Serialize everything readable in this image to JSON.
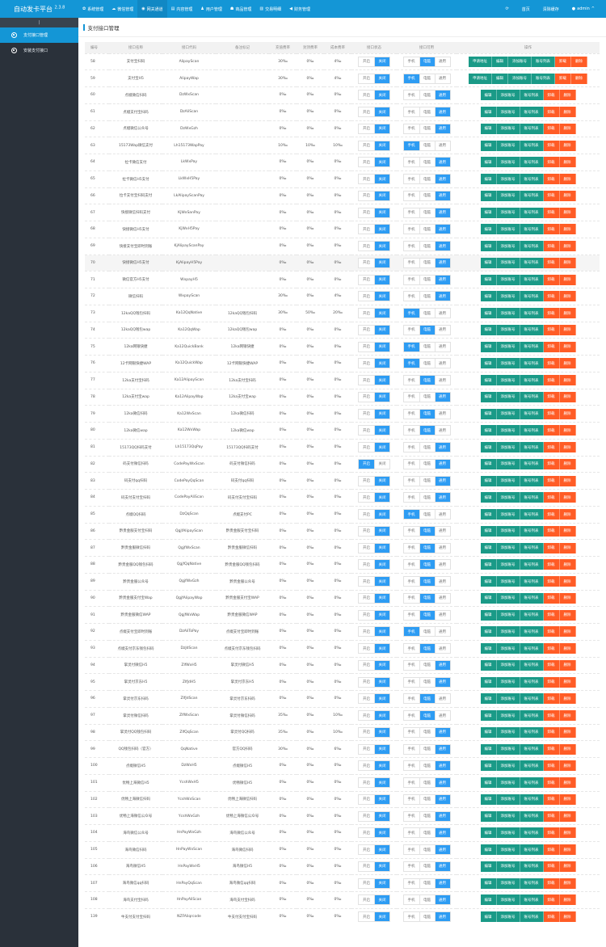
{
  "header": {
    "brand": "自动发卡平台",
    "version": "2.3.8",
    "nav": [
      {
        "label": "系统管理",
        "icon": "gear-icon",
        "glyph": "✿"
      },
      {
        "label": "微信管理",
        "icon": "wechat-icon",
        "glyph": "☁"
      },
      {
        "label": "网关通道",
        "icon": "gateway-icon",
        "glyph": "◉"
      },
      {
        "label": "内容管理",
        "icon": "document-icon",
        "glyph": "▤"
      },
      {
        "label": "用户管理",
        "icon": "users-icon",
        "glyph": "♟"
      },
      {
        "label": "商品管理",
        "icon": "bag-icon",
        "glyph": "☗"
      },
      {
        "label": "交易明细",
        "icon": "chart-icon",
        "glyph": "▥"
      },
      {
        "label": "财务管理",
        "icon": "megaphone-icon",
        "glyph": "◀"
      }
    ],
    "active_nav": 2,
    "refresh_glyph": "⟳",
    "home": "首页",
    "clear_cache": "清除缓存",
    "user": "admin",
    "user_glyph": "👤",
    "caret": "^"
  },
  "sidebar": {
    "toggle": "|",
    "items": [
      {
        "label": "支付接口管理",
        "active": true
      },
      {
        "label": "安装支付接口",
        "active": false
      }
    ]
  },
  "page": {
    "title": "支付接口管理"
  },
  "table": {
    "columns": [
      "编号",
      "接口名称",
      "接口代码",
      "备注标记",
      "充值费率",
      "封顶费率",
      "成本费率",
      "接口状态",
      "接口可用",
      "操作"
    ],
    "status_options": [
      "开启",
      "关闭"
    ],
    "usage_options": [
      "手机",
      "电脑",
      "通用"
    ],
    "ops_full": [
      "申请地址",
      "编辑",
      "添加账号",
      "账号列表",
      "卸载",
      "删除"
    ],
    "ops_short": [
      "编辑",
      "添加账号",
      "账号列表",
      "卸载",
      "删除"
    ],
    "rows": [
      {
        "id": "58",
        "name": "支付宝扫码",
        "code": "AlipayScan",
        "remark": "",
        "rate": "30‰",
        "cap": "0‰",
        "cost": "4‰",
        "status": 1,
        "usage": 1,
        "apply": true
      },
      {
        "id": "59",
        "name": "支付宝H5",
        "code": "AlipayWap",
        "remark": "",
        "rate": "30‰",
        "cap": "0‰",
        "cost": "4‰",
        "status": 1,
        "usage": 0,
        "apply": true
      },
      {
        "id": "60",
        "name": "点缀微信扫码",
        "code": "DzWxScan",
        "remark": "",
        "rate": "0‰",
        "cap": "0‰",
        "cost": "0‰",
        "status": 1,
        "usage": 2
      },
      {
        "id": "61",
        "name": "点缀支付宝扫码",
        "code": "DzAliScan",
        "remark": "",
        "rate": "0‰",
        "cap": "0‰",
        "cost": "0‰",
        "status": 1,
        "usage": 2
      },
      {
        "id": "62",
        "name": "点缀微信公众号",
        "code": "DzWxGzh",
        "remark": "",
        "rate": "0‰",
        "cap": "0‰",
        "cost": "0‰",
        "status": 1,
        "usage": 2
      },
      {
        "id": "63",
        "name": "15173Wap微信支付",
        "code": "Lh15173WapPay",
        "remark": "",
        "rate": "10‰",
        "cap": "10‰",
        "cost": "10‰",
        "status": 1,
        "usage": 0
      },
      {
        "id": "64",
        "name": "拉卡微信支付",
        "code": "LkWxPay",
        "remark": "",
        "rate": "0‰",
        "cap": "0‰",
        "cost": "0‰",
        "status": 1,
        "usage": 2
      },
      {
        "id": "65",
        "name": "拉卡微信H5支付",
        "code": "LkWxH5Pay",
        "remark": "",
        "rate": "0‰",
        "cap": "0‰",
        "cost": "0‰",
        "status": 1,
        "usage": 2
      },
      {
        "id": "66",
        "name": "拉卡支付宝扫码支付",
        "code": "LkAlipayScanPay",
        "remark": "",
        "rate": "0‰",
        "cap": "0‰",
        "cost": "0‰",
        "status": 1,
        "usage": 2
      },
      {
        "id": "67",
        "name": "快接微信扫码支付",
        "code": "KjWxSanPay",
        "remark": "",
        "rate": "0‰",
        "cap": "0‰",
        "cost": "0‰",
        "status": 1,
        "usage": 2
      },
      {
        "id": "68",
        "name": "快接微信H5支付",
        "code": "KjWxH5Pay",
        "remark": "",
        "rate": "0‰",
        "cap": "0‰",
        "cost": "0‰",
        "status": 1,
        "usage": 2
      },
      {
        "id": "69",
        "name": "快接支付宝即时到账",
        "code": "KjAlipayScanPay",
        "remark": "",
        "rate": "0‰",
        "cap": "0‰",
        "cost": "0‰",
        "status": 1,
        "usage": 2
      },
      {
        "id": "70",
        "name": "快接微信H5支付",
        "code": "KjAlipayH5Pay",
        "remark": "",
        "rate": "0‰",
        "cap": "0‰",
        "cost": "0‰",
        "status": 1,
        "usage": 2,
        "highlight": true
      },
      {
        "id": "71",
        "name": "微信官方H5支付",
        "code": "WxpayH5",
        "remark": "",
        "rate": "0‰",
        "cap": "0‰",
        "cost": "0‰",
        "status": 1,
        "usage": 2
      },
      {
        "id": "72",
        "name": "微信扫码",
        "code": "WxpayScan",
        "remark": "",
        "rate": "30‰",
        "cap": "0‰",
        "cost": "4‰",
        "status": 1,
        "usage": 2
      },
      {
        "id": "73",
        "name": "12kaQQ钱包扫码",
        "code": "Ka12QqNative",
        "remark": "12kaQQ钱包扫码",
        "rate": "30‰",
        "cap": "50‰",
        "cost": "20‰",
        "status": 1,
        "usage": 0
      },
      {
        "id": "74",
        "name": "12kaQQ钱包wap",
        "code": "Ka12QqWap",
        "remark": "12kaQQ钱包wap",
        "rate": "0‰",
        "cap": "0‰",
        "cost": "0‰",
        "status": 1,
        "usage": 1
      },
      {
        "id": "75",
        "name": "12ka网银快捷",
        "code": "Ka12QuickBank",
        "remark": "12ka网银快捷",
        "rate": "0‰",
        "cap": "0‰",
        "cost": "0‰",
        "status": 1,
        "usage": 0
      },
      {
        "id": "76",
        "name": "12卡网银快捷WAP",
        "code": "Ka12QuickWap",
        "remark": "12卡网银快捷WAP",
        "rate": "0‰",
        "cap": "0‰",
        "cost": "0‰",
        "status": 1,
        "usage": 0
      },
      {
        "id": "77",
        "name": "12ka支付宝扫码",
        "code": "Ka12AlipayScan",
        "remark": "12ka支付宝扫码",
        "rate": "0‰",
        "cap": "0‰",
        "cost": "0‰",
        "status": 1,
        "usage": 1
      },
      {
        "id": "78",
        "name": "12ka支付宝wap",
        "code": "Ka12AlipayWap",
        "remark": "12ka支付宝wap",
        "rate": "0‰",
        "cap": "0‰",
        "cost": "0‰",
        "status": 1,
        "usage": 2
      },
      {
        "id": "79",
        "name": "12ka微信扫码",
        "code": "Ka12WxScan",
        "remark": "12ka微信扫码",
        "rate": "0‰",
        "cap": "0‰",
        "cost": "0‰",
        "status": 1,
        "usage": 1
      },
      {
        "id": "80",
        "name": "12ka微信wap",
        "code": "Ka12WxWap",
        "remark": "12ka微信wap",
        "rate": "0‰",
        "cap": "0‰",
        "cost": "0‰",
        "status": 1,
        "usage": 1
      },
      {
        "id": "81",
        "name": "15173QQ扫码支付",
        "code": "Lh15173QqPay",
        "remark": "15173QQ扫码支付",
        "rate": "0‰",
        "cap": "0‰",
        "cost": "0‰",
        "status": 1,
        "usage": 2
      },
      {
        "id": "82",
        "name": "码支付微信扫码",
        "code": "CodePayWxScan",
        "remark": "码支付微信扫码",
        "rate": "0‰",
        "cap": "0‰",
        "cost": "0‰",
        "status": 0,
        "usage": 2
      },
      {
        "id": "83",
        "name": "码支付qq扫码",
        "code": "CodePayQqScan",
        "remark": "码支付qq扫码",
        "rate": "0‰",
        "cap": "0‰",
        "cost": "0‰",
        "status": 1,
        "usage": 2
      },
      {
        "id": "84",
        "name": "码支付支付宝扫码",
        "code": "CodePayAliScan",
        "remark": "码支付支付宝扫码",
        "rate": "0‰",
        "cap": "0‰",
        "cost": "0‰",
        "status": 1,
        "usage": 2
      },
      {
        "id": "85",
        "name": "点缀QQ扫码",
        "code": "DzQqScan",
        "remark": "点缀支付PC",
        "rate": "0‰",
        "cap": "0‰",
        "cost": "0‰",
        "status": 1,
        "usage": 0
      },
      {
        "id": "86",
        "name": "黔贵金服支付宝扫码",
        "code": "QgjfAlipayScan",
        "remark": "黔贵金服支付宝扫码",
        "rate": "0‰",
        "cap": "0‰",
        "cost": "0‰",
        "status": 1,
        "usage": 1
      },
      {
        "id": "87",
        "name": "黔贵金服微信扫码",
        "code": "QgjfWxScan",
        "remark": "黔贵金服微信扫码",
        "rate": "0‰",
        "cap": "0‰",
        "cost": "0‰",
        "status": 1,
        "usage": 1
      },
      {
        "id": "88",
        "name": "黔贵金服QQ钱包扫码",
        "code": "QgjfQqNative",
        "remark": "黔贵金服QQ钱包扫码",
        "rate": "0‰",
        "cap": "0‰",
        "cost": "0‰",
        "status": 1,
        "usage": 1
      },
      {
        "id": "89",
        "name": "黔贵金服公众号",
        "code": "QgjfWxGzh",
        "remark": "黔贵金服公众号",
        "rate": "0‰",
        "cap": "0‰",
        "cost": "0‰",
        "status": 1,
        "usage": 1
      },
      {
        "id": "90",
        "name": "黔贵金服支付宝Wap",
        "code": "QgjfAlipayWap",
        "remark": "黔贵金服支付宝WAP",
        "rate": "0‰",
        "cap": "0‰",
        "cost": "0‰",
        "status": 1,
        "usage": 1
      },
      {
        "id": "91",
        "name": "黔贵金服微信WAP",
        "code": "QgjfWxWap",
        "remark": "黔贵金服微信WAP",
        "rate": "0‰",
        "cap": "0‰",
        "cost": "0‰",
        "status": 1,
        "usage": 1
      },
      {
        "id": "92",
        "name": "点缀支付宝即时到账",
        "code": "DzAliToPay",
        "remark": "点缀支付宝即时到账",
        "rate": "0‰",
        "cap": "0‰",
        "cost": "0‰",
        "status": 1,
        "usage": 0
      },
      {
        "id": "93",
        "name": "点缀支付京东钱包扫码",
        "code": "DzJdScan",
        "remark": "点缀支付京东钱包扫码",
        "rate": "0‰",
        "cap": "0‰",
        "cost": "0‰",
        "status": 1,
        "usage": 1
      },
      {
        "id": "94",
        "name": "掌灵付微信H5",
        "code": "ZlfWxH5",
        "remark": "掌灵付微信H5",
        "rate": "0‰",
        "cap": "0‰",
        "cost": "0‰",
        "status": 1,
        "usage": 2
      },
      {
        "id": "95",
        "name": "掌灵付京东H5",
        "code": "ZlfJdH5",
        "remark": "掌灵付京东H5",
        "rate": "0‰",
        "cap": "0‰",
        "cost": "0‰",
        "status": 1,
        "usage": 2
      },
      {
        "id": "96",
        "name": "掌灵付京东扫码",
        "code": "ZlfJdScan",
        "remark": "掌灵付京东扫码",
        "rate": "0‰",
        "cap": "0‰",
        "cost": "0‰",
        "status": 1,
        "usage": 1
      },
      {
        "id": "97",
        "name": "掌灵付微信扫码",
        "code": "ZlfWxScan",
        "remark": "掌灵付微信扫码",
        "rate": "35‰",
        "cap": "0‰",
        "cost": "10‰",
        "status": 1,
        "usage": 1
      },
      {
        "id": "98",
        "name": "掌灵付QQ钱包扫码",
        "code": "ZlfQqScan",
        "remark": "掌灵付QQ扫码",
        "rate": "35‰",
        "cap": "0‰",
        "cost": "10‰",
        "status": 1,
        "usage": 2
      },
      {
        "id": "99",
        "name": "QQ钱包扫码（官方）",
        "code": "QqNative",
        "remark": "官方QQ扫码",
        "rate": "30‰",
        "cap": "0‰",
        "cost": "6‰",
        "status": 1,
        "usage": 2
      },
      {
        "id": "100",
        "name": "点缀微信H5",
        "code": "DzWxH5",
        "remark": "点缀微信H5",
        "rate": "0‰",
        "cap": "0‰",
        "cost": "0‰",
        "status": 1,
        "usage": 2
      },
      {
        "id": "101",
        "name": "优畅上海微信H5",
        "code": "YcshWxH5",
        "remark": "优畅微信H5",
        "rate": "0‰",
        "cap": "0‰",
        "cost": "0‰",
        "status": 1,
        "usage": 2
      },
      {
        "id": "102",
        "name": "优畅上海微信扫码",
        "code": "YcshWxScan",
        "remark": "优畅上海微信扫码",
        "rate": "0‰",
        "cap": "0‰",
        "cost": "0‰",
        "status": 1,
        "usage": 2
      },
      {
        "id": "103",
        "name": "优畅上海微信公众号",
        "code": "YcshWxGzh",
        "remark": "优畅上海微信公众号",
        "rate": "0‰",
        "cap": "0‰",
        "cost": "0‰",
        "status": 1,
        "usage": 2
      },
      {
        "id": "104",
        "name": "海鸟微信公众号",
        "code": "HnPayWxGzh",
        "remark": "海鸟微信公众号",
        "rate": "0‰",
        "cap": "0‰",
        "cost": "0‰",
        "status": 1,
        "usage": 2
      },
      {
        "id": "105",
        "name": "海鸟微信扫码",
        "code": "HnPayWxScan",
        "remark": "海鸟微信扫码",
        "rate": "0‰",
        "cap": "0‰",
        "cost": "0‰",
        "status": 1,
        "usage": 2
      },
      {
        "id": "106",
        "name": "海鸟微信H5",
        "code": "HnPayWxH5",
        "remark": "海鸟微信H5",
        "rate": "0‰",
        "cap": "0‰",
        "cost": "0‰",
        "status": 1,
        "usage": 2
      },
      {
        "id": "107",
        "name": "海鸟微信qq扫码",
        "code": "HnPayQqScan",
        "remark": "海鸟微信qq扫码",
        "rate": "0‰",
        "cap": "0‰",
        "cost": "0‰",
        "status": 1,
        "usage": 2
      },
      {
        "id": "108",
        "name": "海鸟支付宝扫码",
        "code": "HnPayAliScan",
        "remark": "海鸟支付宝扫码",
        "rate": "0‰",
        "cap": "0‰",
        "cost": "0‰",
        "status": 1,
        "usage": 2
      },
      {
        "id": "139",
        "name": "牛支付支付宝扫码",
        "code": "NZFAliqrcode",
        "remark": "牛支付支付宝扫码",
        "rate": "0‰",
        "cap": "0‰",
        "cost": "0‰",
        "status": 1,
        "usage": 2
      }
    ]
  },
  "colors": {
    "header": "#1496d6",
    "sidebar": "#2a313a",
    "toggle_on": "#2d9cf3",
    "op_green": "#1a9a87",
    "op_orange": "#ff5c26"
  }
}
